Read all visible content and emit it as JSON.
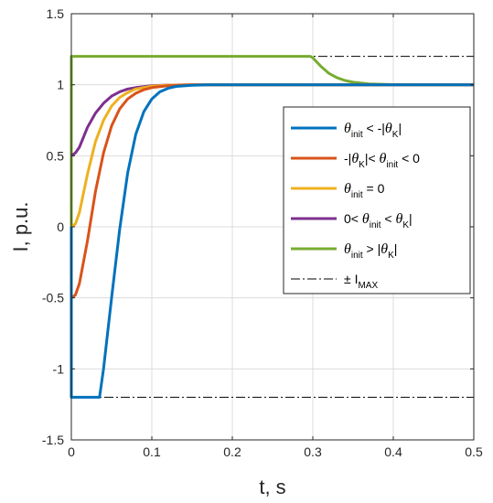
{
  "chart_data": {
    "type": "line",
    "xlabel": "t, s",
    "ylabel": "I, p.u.",
    "xlim": [
      0,
      0.5
    ],
    "ylim": [
      -1.5,
      1.5
    ],
    "xticks": [
      0,
      0.1,
      0.2,
      0.3,
      0.4,
      0.5
    ],
    "xtick_labels": [
      "0",
      "0.1",
      "0.2",
      "0.3",
      "0.4",
      "0.5"
    ],
    "yticks": [
      -1.5,
      -1,
      -0.5,
      0,
      0.5,
      1,
      1.5
    ],
    "ytick_labels": [
      "-1.5",
      "-1",
      "-0.5",
      "0",
      "0.5",
      "1",
      "1.5"
    ],
    "grid": true,
    "legend_position": "center-right",
    "series": [
      {
        "legend": [
          {
            "t": "θ",
            "greek": true
          },
          {
            "t": "init",
            "sub": true
          },
          {
            "t": " < -|"
          },
          {
            "t": "θ",
            "greek": true
          },
          {
            "t": "K",
            "sub": true
          },
          {
            "t": "|"
          }
        ],
        "color": "#0072BD",
        "x": [
          0,
          0,
          0.035,
          0.04,
          0.05,
          0.06,
          0.07,
          0.08,
          0.09,
          0.1,
          0.11,
          0.12,
          0.13,
          0.15,
          0.17,
          0.2,
          0.25,
          0.3,
          0.5
        ],
        "y": [
          0,
          -1.2,
          -1.2,
          -1.0,
          -0.5,
          -0.02,
          0.38,
          0.65,
          0.81,
          0.9,
          0.95,
          0.975,
          0.988,
          0.996,
          0.999,
          1.0,
          1.0,
          1.0,
          1.0
        ]
      },
      {
        "legend": [
          {
            "t": "-|"
          },
          {
            "t": "θ",
            "greek": true
          },
          {
            "t": "K",
            "sub": true
          },
          {
            "t": "|< "
          },
          {
            "t": "θ",
            "greek": true
          },
          {
            "t": "init",
            "sub": true
          },
          {
            "t": " < 0"
          }
        ],
        "color": "#D95319",
        "x": [
          0,
          0,
          0.005,
          0.01,
          0.02,
          0.03,
          0.04,
          0.05,
          0.06,
          0.07,
          0.08,
          0.09,
          0.1,
          0.12,
          0.15,
          0.2,
          0.5
        ],
        "y": [
          0,
          -0.5,
          -0.48,
          -0.4,
          -0.1,
          0.25,
          0.52,
          0.71,
          0.83,
          0.9,
          0.94,
          0.965,
          0.98,
          0.993,
          0.999,
          1.0,
          1.0
        ]
      },
      {
        "legend": [
          {
            "t": "θ",
            "greek": true
          },
          {
            "t": "init",
            "sub": true
          },
          {
            "t": " = 0"
          }
        ],
        "color": "#EDB120",
        "x": [
          0,
          0,
          0.005,
          0.01,
          0.02,
          0.03,
          0.04,
          0.05,
          0.06,
          0.07,
          0.08,
          0.1,
          0.12,
          0.15,
          0.2,
          0.5
        ],
        "y": [
          0,
          0.0,
          0.02,
          0.1,
          0.37,
          0.6,
          0.75,
          0.85,
          0.91,
          0.945,
          0.97,
          0.99,
          0.997,
          1.0,
          1.0,
          1.0
        ]
      },
      {
        "legend": [
          {
            "t": "0< "
          },
          {
            "t": "θ",
            "greek": true
          },
          {
            "t": "init",
            "sub": true
          },
          {
            "t": " < "
          },
          {
            "t": "θ",
            "greek": true
          },
          {
            "t": "K",
            "sub": true
          },
          {
            "t": "|"
          }
        ],
        "color": "#7E2F8E",
        "x": [
          0,
          0.005,
          0.01,
          0.02,
          0.03,
          0.04,
          0.05,
          0.06,
          0.07,
          0.08,
          0.1,
          0.12,
          0.15,
          0.2,
          0.5
        ],
        "y": [
          0.5,
          0.52,
          0.56,
          0.7,
          0.8,
          0.87,
          0.92,
          0.95,
          0.97,
          0.98,
          0.993,
          0.998,
          1.0,
          1.0,
          1.0
        ]
      },
      {
        "legend": [
          {
            "t": "θ",
            "greek": true
          },
          {
            "t": "init",
            "sub": true
          },
          {
            "t": " > |"
          },
          {
            "t": "θ",
            "greek": true
          },
          {
            "t": "K",
            "sub": true
          },
          {
            "t": "|"
          }
        ],
        "color": "#77AC30",
        "x": [
          0,
          0,
          0.297,
          0.3,
          0.31,
          0.32,
          0.33,
          0.34,
          0.35,
          0.37,
          0.4,
          0.43,
          0.5
        ],
        "y": [
          0,
          1.2,
          1.2,
          1.19,
          1.13,
          1.08,
          1.05,
          1.03,
          1.018,
          1.006,
          1.001,
          1.0,
          1.0
        ]
      },
      {
        "legend": [
          {
            "t": "± I"
          },
          {
            "t": "MAX",
            "sub": true
          }
        ],
        "color": "#000000",
        "dash": "dashdot",
        "x": [
          0,
          0.5
        ],
        "y": [
          1.2,
          1.2
        ],
        "mirror_y": [
          -1.2,
          -1.2
        ]
      }
    ]
  }
}
